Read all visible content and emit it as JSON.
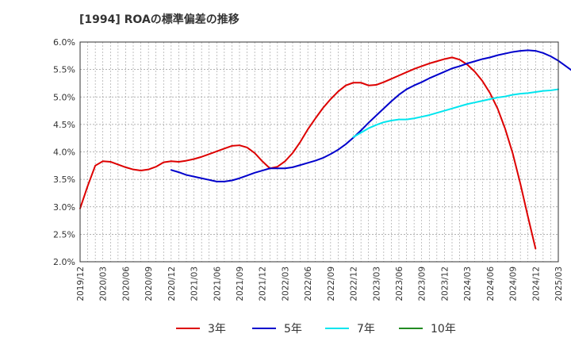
{
  "chart_data": {
    "type": "line",
    "title": "[1994]  ROAの標準偏差の推移",
    "xlabel": "",
    "ylabel": "",
    "ylim": [
      2.0,
      6.0
    ],
    "y_ticks": [
      "6.0%",
      "5.5%",
      "5.0%",
      "4.5%",
      "4.0%",
      "3.5%",
      "3.0%",
      "2.5%",
      "2.0%"
    ],
    "x_ticks": [
      "2019/12",
      "2020/03",
      "2020/06",
      "2020/09",
      "2020/12",
      "2021/03",
      "2021/06",
      "2021/09",
      "2021/12",
      "2022/03",
      "2022/06",
      "2022/09",
      "2022/12",
      "2023/03",
      "2023/06",
      "2023/09",
      "2023/12",
      "2024/03",
      "2024/06",
      "2024/09",
      "2024/12",
      "2025/03"
    ],
    "grid": true,
    "legend_position": "bottom",
    "series": [
      {
        "name": "3年",
        "color": "#dd0000",
        "start": "2019/12",
        "values": [
          2.97,
          3.38,
          3.75,
          3.83,
          3.82,
          3.77,
          3.72,
          3.68,
          3.66,
          3.68,
          3.73,
          3.81,
          3.83,
          3.82,
          3.84,
          3.87,
          3.91,
          3.96,
          4.01,
          4.06,
          4.11,
          4.12,
          4.08,
          3.98,
          3.83,
          3.7,
          3.73,
          3.83,
          3.98,
          4.18,
          4.41,
          4.61,
          4.8,
          4.96,
          5.1,
          5.21,
          5.26,
          5.26,
          5.21,
          5.22,
          5.27,
          5.33,
          5.39,
          5.45,
          5.51,
          5.56,
          5.61,
          5.65,
          5.69,
          5.72,
          5.68,
          5.59,
          5.46,
          5.29,
          5.07,
          4.79,
          4.42,
          3.97,
          3.42,
          2.82,
          2.24
        ]
      },
      {
        "name": "5年",
        "color": "#0000cc",
        "start": "2020/12",
        "values": [
          3.67,
          3.63,
          3.58,
          3.55,
          3.52,
          3.49,
          3.46,
          3.46,
          3.48,
          3.52,
          3.57,
          3.62,
          3.66,
          3.7,
          3.7,
          3.7,
          3.72,
          3.76,
          3.8,
          3.84,
          3.89,
          3.96,
          4.04,
          4.14,
          4.26,
          4.39,
          4.53,
          4.66,
          4.79,
          4.92,
          5.04,
          5.14,
          5.21,
          5.27,
          5.34,
          5.4,
          5.46,
          5.52,
          5.56,
          5.61,
          5.65,
          5.69,
          5.72,
          5.76,
          5.79,
          5.82,
          5.84,
          5.85,
          5.84,
          5.8,
          5.74,
          5.66,
          5.56,
          5.46
        ]
      },
      {
        "name": "7年",
        "color": "#00e5ee",
        "start": "2022/12",
        "values": [
          4.27,
          4.35,
          4.43,
          4.49,
          4.54,
          4.57,
          4.59,
          4.59,
          4.61,
          4.64,
          4.67,
          4.71,
          4.75,
          4.79,
          4.83,
          4.87,
          4.9,
          4.93,
          4.96,
          4.99,
          5.01,
          5.04,
          5.06,
          5.07,
          5.09,
          5.11,
          5.12,
          5.14
        ]
      },
      {
        "name": "10年",
        "color": "#228b22",
        "start": "2025/03",
        "values": []
      }
    ]
  }
}
